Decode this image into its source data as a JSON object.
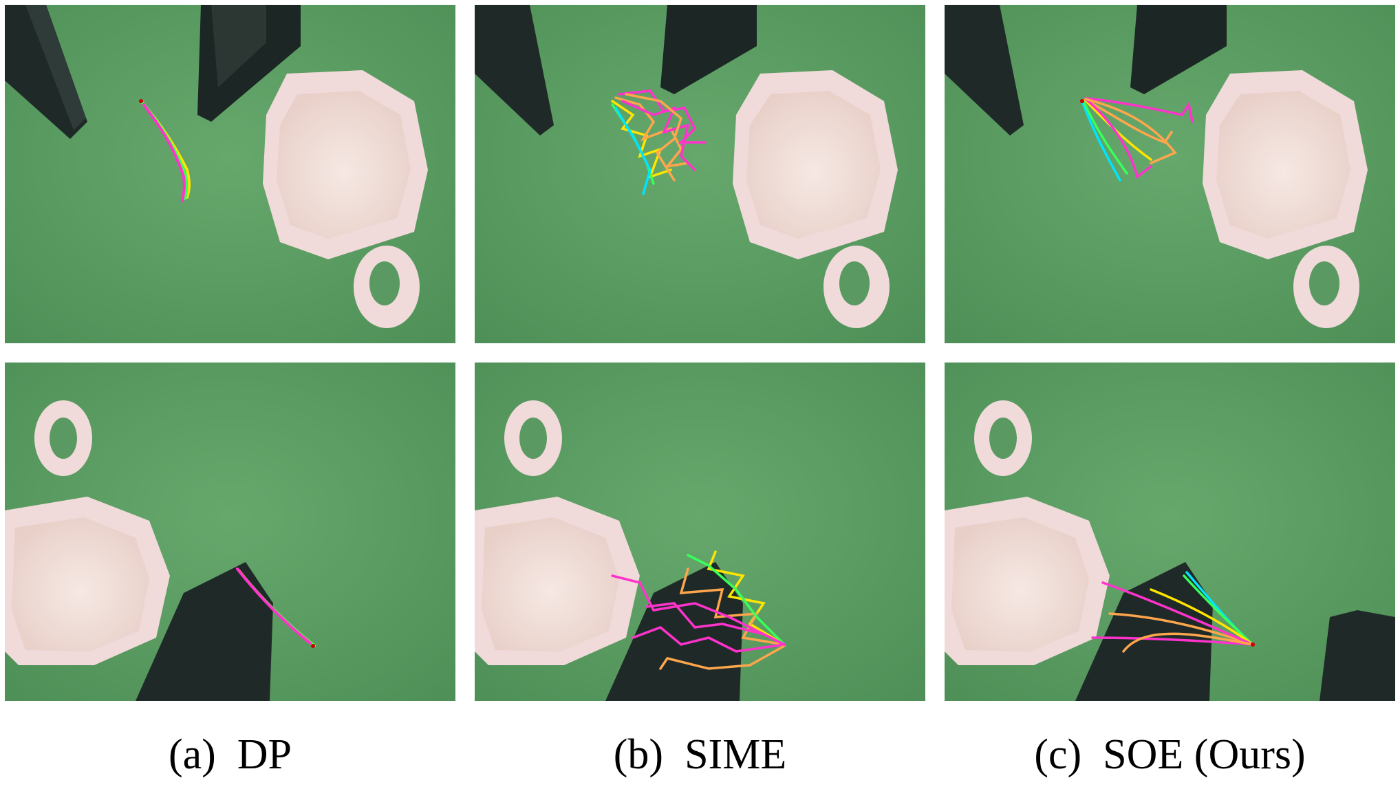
{
  "figure": {
    "columns": [
      {
        "caption": "(a)  DP"
      },
      {
        "caption": "(b)  SIME"
      },
      {
        "caption": "(c)  SOE (Ours)"
      }
    ]
  },
  "panels": [
    {
      "id": "dp-top",
      "scene": "mug-upper-right",
      "method": "DP"
    },
    {
      "id": "sime-top",
      "scene": "mug-upper-right",
      "method": "SIME"
    },
    {
      "id": "soe-top",
      "scene": "mug-upper-right",
      "method": "SOE"
    },
    {
      "id": "dp-bottom",
      "scene": "mug-lower-left",
      "method": "DP"
    },
    {
      "id": "sime-bottom",
      "scene": "mug-lower-left",
      "method": "SIME"
    },
    {
      "id": "soe-bottom",
      "scene": "mug-lower-left",
      "method": "SOE"
    }
  ],
  "colors": {
    "background_green": "#5a9a62",
    "trajectory_gradient": [
      "#00e5ff",
      "#39ff5a",
      "#ffe500",
      "#ffa64d",
      "#ff33cc"
    ],
    "mug": "#f2dede",
    "gripper": "#1f2a28"
  }
}
